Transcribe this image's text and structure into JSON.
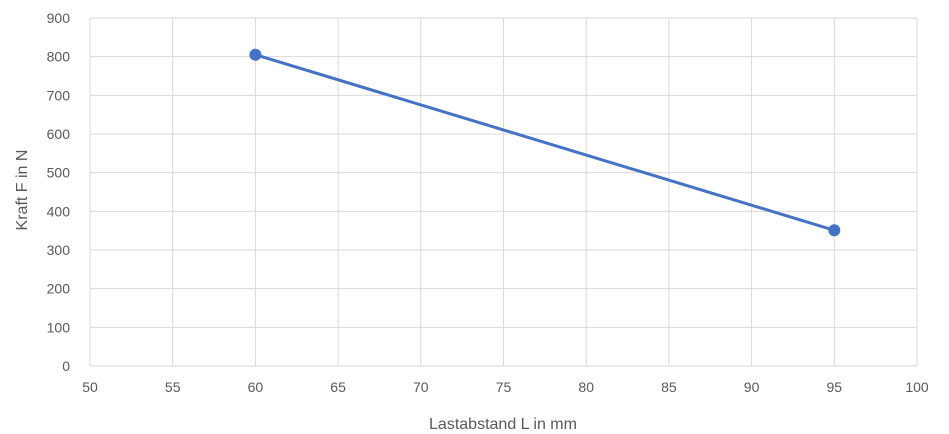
{
  "chart_data": {
    "type": "line",
    "title": "",
    "xlabel": "Lastabstand L in mm",
    "ylabel": "Kraft F in N",
    "xlim": [
      50,
      100
    ],
    "ylim": [
      0,
      900
    ],
    "x_ticks": [
      50,
      55,
      60,
      65,
      70,
      75,
      80,
      85,
      90,
      95,
      100
    ],
    "y_ticks": [
      0,
      100,
      200,
      300,
      400,
      500,
      600,
      700,
      800,
      900
    ],
    "grid": true,
    "legend": "none",
    "series": [
      {
        "color": "#4472c4",
        "x": [
          60,
          95
        ],
        "y": [
          805,
          351
        ]
      }
    ]
  }
}
